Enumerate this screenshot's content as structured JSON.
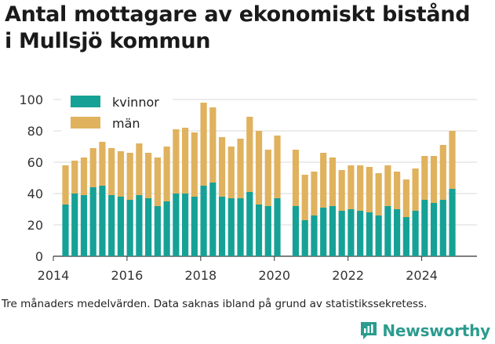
{
  "title_line1": "Antal mottagare av ekonomiskt bistånd",
  "title_line2": "i Mullsjö kommun",
  "caption": "Tre månaders medelvärden. Data saknas ibland på grund av statistikssekretess.",
  "brand": "Newsworthy",
  "colors": {
    "kvinnor": "#16a196",
    "man": "#e0b25e",
    "grid": "#d8d8d8",
    "brand": "#2b9c8e"
  },
  "chart_data": {
    "type": "bar",
    "stacked": true,
    "title": "Antal mottagare av ekonomiskt bistånd i Mullsjö kommun",
    "ylim": [
      0,
      100
    ],
    "xlim": [
      2014,
      2025.5
    ],
    "yticks": [
      0,
      20,
      40,
      60,
      80,
      100
    ],
    "xticks": [
      2014,
      2016,
      2018,
      2020,
      2022,
      2024
    ],
    "grid": true,
    "legend_position": "top-left",
    "x": [
      2014.33,
      2014.58,
      2014.83,
      2015.08,
      2015.33,
      2015.58,
      2015.83,
      2016.08,
      2016.33,
      2016.58,
      2016.83,
      2017.08,
      2017.33,
      2017.58,
      2017.83,
      2018.08,
      2018.33,
      2018.58,
      2018.83,
      2019.08,
      2019.33,
      2019.58,
      2019.83,
      2020.08,
      2020.58,
      2020.83,
      2021.08,
      2021.33,
      2021.58,
      2021.83,
      2022.08,
      2022.33,
      2022.58,
      2022.83,
      2023.08,
      2023.33,
      2023.58,
      2023.83,
      2024.08,
      2024.33,
      2024.58,
      2024.83
    ],
    "series": [
      {
        "name": "kvinnor",
        "values": [
          33,
          40,
          39,
          44,
          45,
          39,
          38,
          36,
          39,
          37,
          32,
          35,
          40,
          40,
          38,
          45,
          47,
          38,
          37,
          37,
          41,
          33,
          32,
          37,
          32,
          23,
          26,
          31,
          32,
          29,
          30,
          29,
          28,
          26,
          32,
          30,
          25,
          29,
          36,
          34,
          36,
          43
        ]
      },
      {
        "name": "män",
        "values": [
          25,
          21,
          24,
          25,
          28,
          30,
          29,
          30,
          33,
          29,
          31,
          35,
          41,
          42,
          41,
          53,
          48,
          38,
          33,
          38,
          48,
          47,
          36,
          40,
          36,
          29,
          28,
          35,
          31,
          26,
          28,
          29,
          29,
          27,
          26,
          24,
          24,
          27,
          28,
          30,
          35,
          37
        ]
      }
    ]
  }
}
